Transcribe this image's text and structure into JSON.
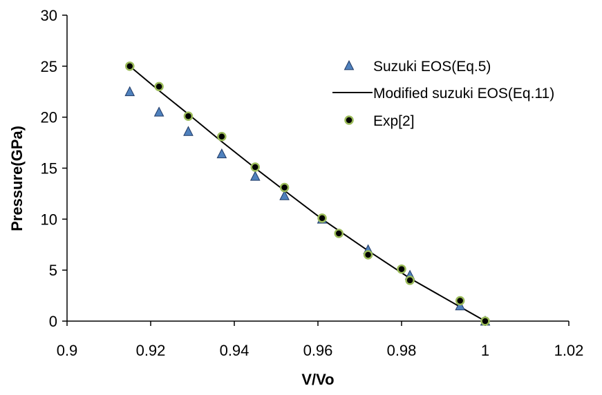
{
  "colors": {
    "triangle_fill": "#4f81bd",
    "triangle_stroke": "#1f3864",
    "circle_fill": "#000000",
    "circle_stroke": "#9bbb59",
    "line": "#000000",
    "axis": "#000000"
  },
  "chart_data": {
    "type": "scatter",
    "title": "",
    "xlabel": "V/Vo",
    "ylabel": "Pressure(GPa)",
    "xlim": [
      0.9,
      1.02
    ],
    "ylim": [
      0,
      30
    ],
    "xticks": [
      "0.9",
      "0.92",
      "0.94",
      "0.96",
      "0.98",
      "1",
      "1.02"
    ],
    "yticks": [
      "0",
      "5",
      "10",
      "15",
      "20",
      "25",
      "30"
    ],
    "grid": false,
    "legend_position": "top-right",
    "series": [
      {
        "name": "Suzuki EOS(Eq.5)",
        "kind": "marker-triangle",
        "points": [
          {
            "x": 0.915,
            "y": 22.5
          },
          {
            "x": 0.922,
            "y": 20.5
          },
          {
            "x": 0.929,
            "y": 18.6
          },
          {
            "x": 0.937,
            "y": 16.4
          },
          {
            "x": 0.945,
            "y": 14.2
          },
          {
            "x": 0.952,
            "y": 12.3
          },
          {
            "x": 0.961,
            "y": 10.0
          },
          {
            "x": 0.972,
            "y": 7.0
          },
          {
            "x": 0.982,
            "y": 4.5
          },
          {
            "x": 0.994,
            "y": 1.5
          },
          {
            "x": 1.0,
            "y": 0.0
          }
        ]
      },
      {
        "name": "Modified suzuki EOS(Eq.11)",
        "kind": "line",
        "points": [
          {
            "x": 0.915,
            "y": 25.0
          },
          {
            "x": 0.922,
            "y": 22.6
          },
          {
            "x": 0.929,
            "y": 20.3
          },
          {
            "x": 0.937,
            "y": 17.6
          },
          {
            "x": 0.945,
            "y": 15.0
          },
          {
            "x": 0.952,
            "y": 12.8
          },
          {
            "x": 0.961,
            "y": 10.0
          },
          {
            "x": 0.972,
            "y": 6.9
          },
          {
            "x": 0.982,
            "y": 4.2
          },
          {
            "x": 0.994,
            "y": 1.4
          },
          {
            "x": 1.0,
            "y": 0.0
          }
        ]
      },
      {
        "name": "Exp[2]",
        "kind": "marker-circle",
        "points": [
          {
            "x": 0.915,
            "y": 25.0
          },
          {
            "x": 0.922,
            "y": 23.0
          },
          {
            "x": 0.929,
            "y": 20.1
          },
          {
            "x": 0.937,
            "y": 18.1
          },
          {
            "x": 0.945,
            "y": 15.1
          },
          {
            "x": 0.952,
            "y": 13.1
          },
          {
            "x": 0.961,
            "y": 10.1
          },
          {
            "x": 0.965,
            "y": 8.6
          },
          {
            "x": 0.972,
            "y": 6.5
          },
          {
            "x": 0.98,
            "y": 5.1
          },
          {
            "x": 0.982,
            "y": 4.0
          },
          {
            "x": 0.994,
            "y": 2.0
          },
          {
            "x": 1.0,
            "y": 0.0
          }
        ]
      }
    ]
  }
}
